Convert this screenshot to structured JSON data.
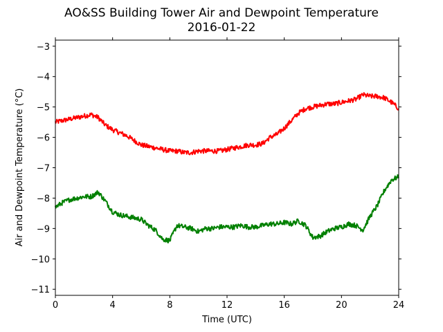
{
  "chart_data": {
    "type": "line",
    "title": "AO&SS Building Tower Air and Dewpoint Temperature",
    "subtitle": "2016-01-22",
    "xlabel": "Time (UTC)",
    "ylabel": "Air and Dewpoint Temperature (°C)",
    "xlim": [
      0,
      24
    ],
    "ylim": [
      -11.2,
      -2.8
    ],
    "xticks": [
      0,
      4,
      8,
      12,
      16,
      20,
      24
    ],
    "yticks": [
      -11,
      -10,
      -9,
      -8,
      -7,
      -6,
      -5,
      -4,
      -3
    ],
    "grid": false,
    "legend": "none",
    "series": [
      {
        "color": "#ff0000",
        "x": [
          0,
          0.5,
          1,
          1.5,
          2,
          2.5,
          3,
          3.5,
          4,
          4.5,
          5,
          5.5,
          6,
          6.5,
          7,
          7.5,
          8,
          8.5,
          9,
          9.5,
          10,
          10.5,
          11,
          11.5,
          12,
          12.5,
          13,
          13.5,
          14,
          14.5,
          15,
          15.5,
          16,
          16.5,
          17,
          17.5,
          18,
          18.5,
          19,
          19.5,
          20,
          20.5,
          21,
          21.5,
          22,
          22.5,
          23,
          23.5,
          24
        ],
        "values": [
          -5.5,
          -5.45,
          -5.4,
          -5.35,
          -5.3,
          -5.25,
          -5.35,
          -5.6,
          -5.75,
          -5.85,
          -5.95,
          -6.1,
          -6.25,
          -6.3,
          -6.35,
          -6.4,
          -6.45,
          -6.45,
          -6.5,
          -6.5,
          -6.45,
          -6.45,
          -6.45,
          -6.45,
          -6.4,
          -6.35,
          -6.3,
          -6.25,
          -6.25,
          -6.2,
          -6.0,
          -5.9,
          -5.7,
          -5.45,
          -5.2,
          -5.05,
          -5.0,
          -4.95,
          -4.9,
          -4.9,
          -4.85,
          -4.8,
          -4.75,
          -4.6,
          -4.65,
          -4.65,
          -4.7,
          -4.85,
          -5.05
        ]
      },
      {
        "color": "#008000",
        "x": [
          0,
          0.5,
          1,
          1.5,
          2,
          2.5,
          3,
          3.5,
          4,
          4.5,
          5,
          5.5,
          6,
          6.5,
          7,
          7.5,
          8,
          8.5,
          9,
          9.5,
          10,
          10.5,
          11,
          11.5,
          12,
          12.5,
          13,
          13.5,
          14,
          14.5,
          15,
          15.5,
          16,
          16.5,
          17,
          17.5,
          18,
          18.5,
          19,
          19.5,
          20,
          20.5,
          21,
          21.5,
          22,
          22.5,
          23,
          23.5,
          24
        ],
        "values": [
          -8.3,
          -8.15,
          -8.05,
          -8.0,
          -7.95,
          -7.95,
          -7.8,
          -8.1,
          -8.45,
          -8.55,
          -8.6,
          -8.65,
          -8.7,
          -8.9,
          -9.05,
          -9.35,
          -9.4,
          -8.9,
          -8.95,
          -9.0,
          -9.1,
          -9.0,
          -9.0,
          -8.95,
          -8.95,
          -8.95,
          -8.9,
          -8.95,
          -8.95,
          -8.9,
          -8.85,
          -8.85,
          -8.8,
          -8.85,
          -8.75,
          -8.9,
          -9.3,
          -9.25,
          -9.1,
          -9.0,
          -8.95,
          -8.85,
          -8.9,
          -9.05,
          -8.6,
          -8.25,
          -7.75,
          -7.4,
          -7.3
        ]
      }
    ]
  }
}
